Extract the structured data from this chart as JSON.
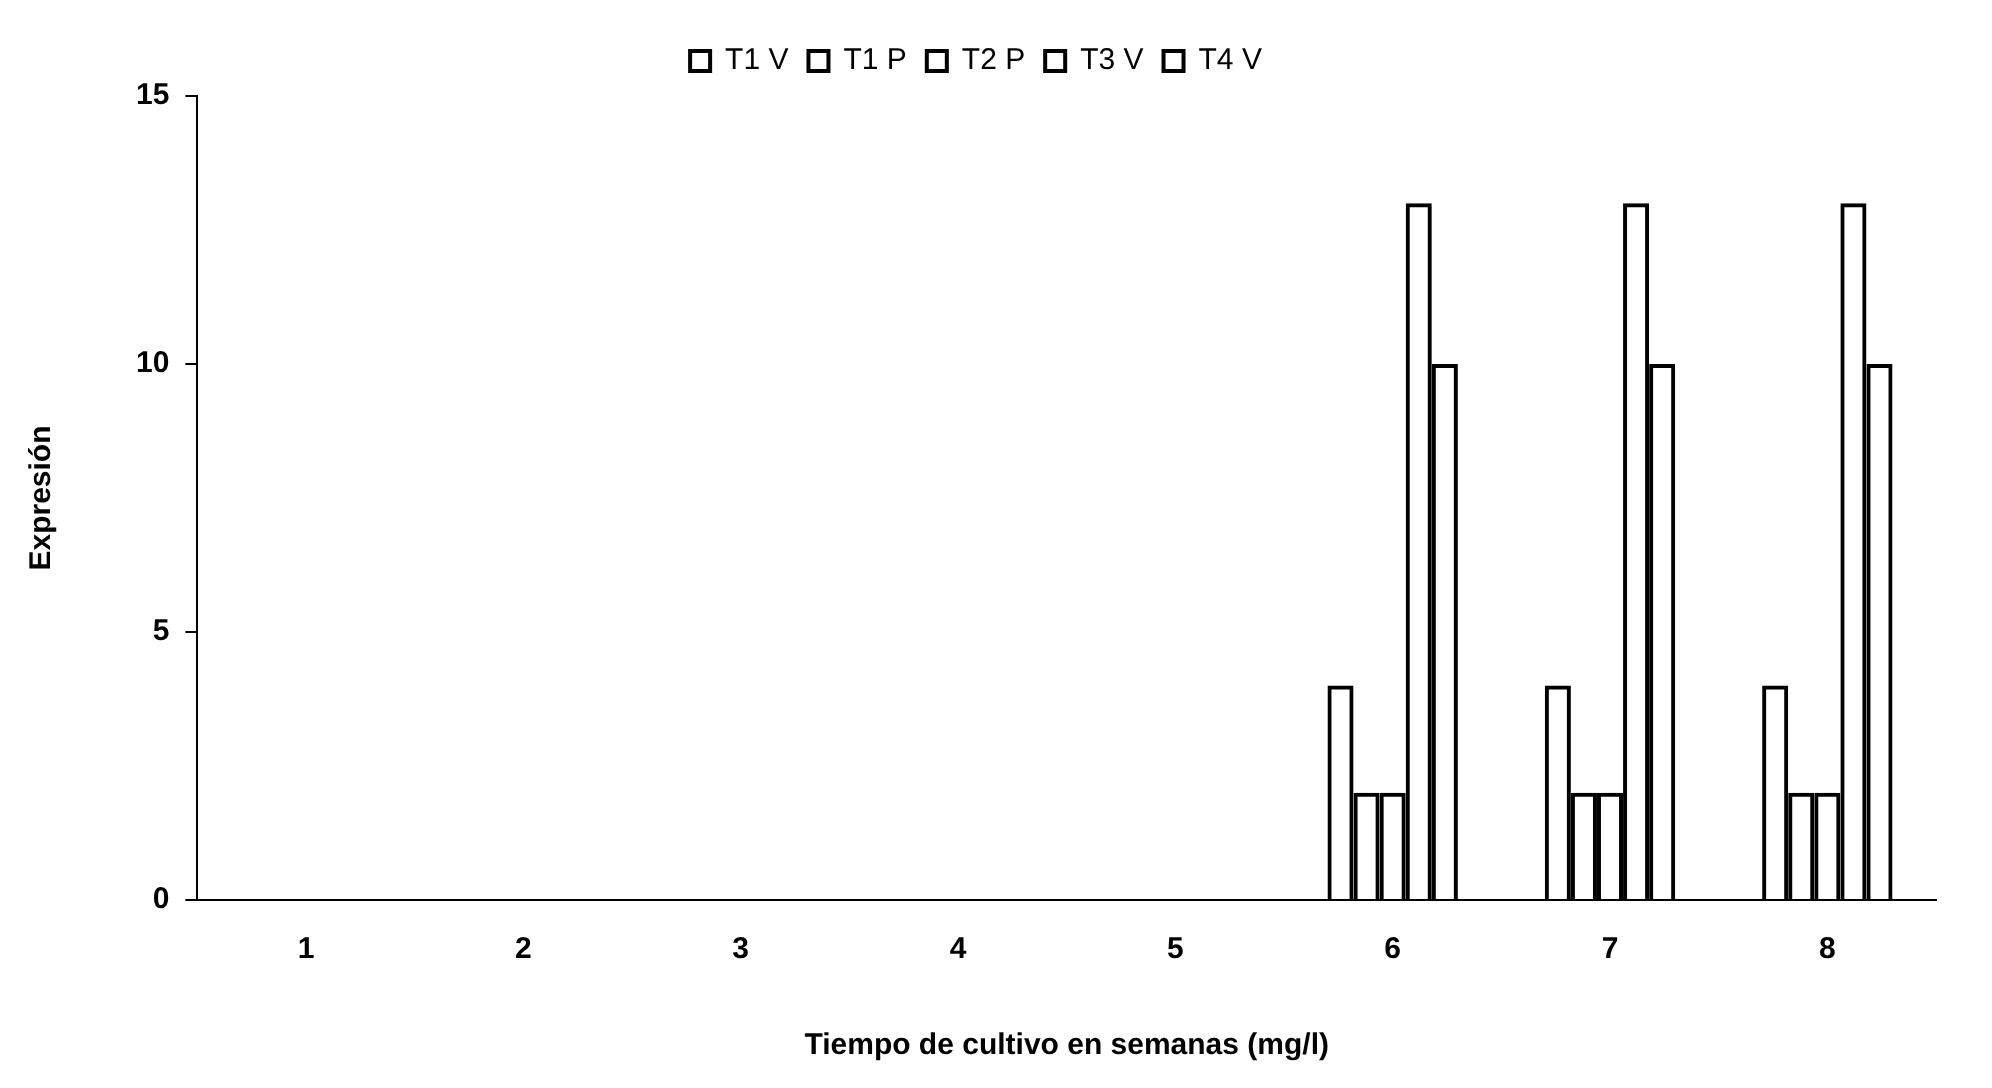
{
  "chart_data": {
    "type": "bar",
    "xlabel": "Tiempo de cultivo en semanas (mg/l)",
    "ylabel": "Expresión",
    "categories": [
      "1",
      "2",
      "3",
      "4",
      "5",
      "6",
      "7",
      "8"
    ],
    "series": [
      {
        "name": "T1 V",
        "color": "#000000",
        "values": [
          0,
          0,
          0,
          0,
          0,
          4,
          4,
          4
        ]
      },
      {
        "name": "T1 P",
        "color": "#000000",
        "values": [
          0,
          0,
          0,
          0,
          0,
          2,
          2,
          2
        ]
      },
      {
        "name": "T2 P",
        "color": "#000000",
        "values": [
          0,
          0,
          0,
          0,
          0,
          2,
          2,
          2
        ]
      },
      {
        "name": "T3 V",
        "color": "#000000",
        "values": [
          0,
          0,
          0,
          0,
          0,
          13,
          13,
          13
        ]
      },
      {
        "name": "T4 V",
        "color": "#000000",
        "values": [
          0,
          0,
          0,
          0,
          0,
          10,
          10,
          10
        ]
      }
    ],
    "ylim": [
      0,
      15
    ],
    "yticks": [
      0,
      5,
      10,
      15
    ],
    "grid": false,
    "legend": "top"
  }
}
